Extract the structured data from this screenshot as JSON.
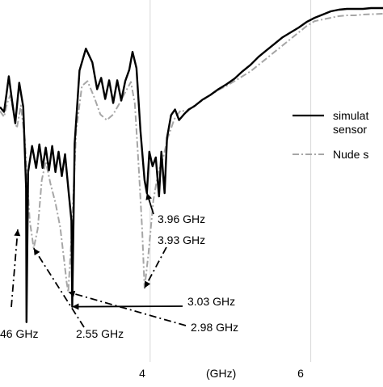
{
  "chart_data": {
    "type": "line",
    "xlabel": "(GHz)",
    "x_ticks": [
      {
        "value": 4,
        "label": "4"
      },
      {
        "value": 6,
        "label": "6"
      }
    ],
    "xlim": [
      2.13,
      6.9
    ],
    "ylim": [
      -46,
      0
    ],
    "grid": true,
    "legend_position": "right",
    "series": [
      {
        "name": "simulated sensor",
        "color": "#000000",
        "dash": "solid",
        "points": [
          [
            2.13,
            -12.0
          ],
          [
            2.18,
            -12.6
          ],
          [
            2.21,
            -10.5
          ],
          [
            2.24,
            -8.2
          ],
          [
            2.28,
            -11.2
          ],
          [
            2.32,
            -14.0
          ],
          [
            2.37,
            -9.0
          ],
          [
            2.42,
            -12.0
          ],
          [
            2.455,
            -22.0
          ],
          [
            2.46,
            -38.5
          ],
          [
            2.48,
            -20.0
          ],
          [
            2.53,
            -16.8
          ],
          [
            2.58,
            -19.5
          ],
          [
            2.62,
            -16.6
          ],
          [
            2.66,
            -19.5
          ],
          [
            2.7,
            -17.0
          ],
          [
            2.74,
            -19.8
          ],
          [
            2.78,
            -16.8
          ],
          [
            2.82,
            -20.0
          ],
          [
            2.86,
            -17.5
          ],
          [
            2.9,
            -20.5
          ],
          [
            2.94,
            -17.8
          ],
          [
            2.98,
            -22.0
          ],
          [
            3.02,
            -26.0
          ],
          [
            3.03,
            -36.6
          ],
          [
            3.06,
            -16.5
          ],
          [
            3.12,
            -7.5
          ],
          [
            3.2,
            -4.8
          ],
          [
            3.28,
            -6.5
          ],
          [
            3.34,
            -9.8
          ],
          [
            3.39,
            -8.4
          ],
          [
            3.44,
            -11.0
          ],
          [
            3.49,
            -8.7
          ],
          [
            3.54,
            -11.5
          ],
          [
            3.59,
            -8.7
          ],
          [
            3.64,
            -11.2
          ],
          [
            3.69,
            -8.8
          ],
          [
            3.74,
            -7.4
          ],
          [
            3.78,
            -5.2
          ],
          [
            3.83,
            -7.2
          ],
          [
            3.88,
            -15.0
          ],
          [
            3.93,
            -21.0
          ],
          [
            3.96,
            -22.6
          ],
          [
            3.99,
            -17.5
          ],
          [
            4.03,
            -19.3
          ],
          [
            4.07,
            -18.2
          ],
          [
            4.11,
            -23.0
          ],
          [
            4.14,
            -17.5
          ],
          [
            4.18,
            -22.6
          ],
          [
            4.21,
            -15.8
          ],
          [
            4.26,
            -13.0
          ],
          [
            4.31,
            -12.3
          ],
          [
            4.36,
            -13.6
          ],
          [
            4.42,
            -12.9
          ],
          [
            4.48,
            -12.3
          ],
          [
            4.55,
            -11.9
          ],
          [
            4.65,
            -11.1
          ],
          [
            4.75,
            -10.5
          ],
          [
            4.85,
            -9.8
          ],
          [
            4.95,
            -9.2
          ],
          [
            5.05,
            -8.5
          ],
          [
            5.15,
            -7.6
          ],
          [
            5.25,
            -6.8
          ],
          [
            5.35,
            -5.8
          ],
          [
            5.45,
            -5.0
          ],
          [
            5.55,
            -4.2
          ],
          [
            5.65,
            -3.4
          ],
          [
            5.75,
            -2.8
          ],
          [
            5.85,
            -2.2
          ],
          [
            5.95,
            -1.5
          ],
          [
            6.05,
            -1.0
          ],
          [
            6.15,
            -0.6
          ],
          [
            6.25,
            -0.2
          ],
          [
            6.35,
            0.0
          ],
          [
            6.45,
            0.1
          ],
          [
            6.55,
            0.1
          ],
          [
            6.65,
            0.1
          ],
          [
            6.75,
            0.2
          ],
          [
            6.9,
            0.2
          ]
        ]
      },
      {
        "name": "Nude sensor",
        "color": "#a6a6a6",
        "dash": "dashdot",
        "points": [
          [
            2.13,
            -12.5
          ],
          [
            2.18,
            -13.2
          ],
          [
            2.22,
            -11.5
          ],
          [
            2.26,
            -10.5
          ],
          [
            2.3,
            -12.8
          ],
          [
            2.34,
            -14.6
          ],
          [
            2.39,
            -11.8
          ],
          [
            2.44,
            -16.0
          ],
          [
            2.5,
            -26.0
          ],
          [
            2.55,
            -29.4
          ],
          [
            2.6,
            -27.0
          ],
          [
            2.65,
            -21.0
          ],
          [
            2.7,
            -18.7
          ],
          [
            2.76,
            -21.5
          ],
          [
            2.82,
            -23.8
          ],
          [
            2.88,
            -26.8
          ],
          [
            2.93,
            -31.0
          ],
          [
            2.96,
            -33.6
          ],
          [
            2.98,
            -34.8
          ],
          [
            3.02,
            -28.0
          ],
          [
            3.08,
            -14.8
          ],
          [
            3.15,
            -9.4
          ],
          [
            3.22,
            -8.8
          ],
          [
            3.3,
            -10.7
          ],
          [
            3.38,
            -12.9
          ],
          [
            3.46,
            -13.6
          ],
          [
            3.54,
            -12.9
          ],
          [
            3.62,
            -11.5
          ],
          [
            3.7,
            -10.0
          ],
          [
            3.76,
            -8.9
          ],
          [
            3.81,
            -11.6
          ],
          [
            3.86,
            -19.8
          ],
          [
            3.9,
            -27.0
          ],
          [
            3.93,
            -34.3
          ],
          [
            3.98,
            -30.0
          ],
          [
            4.04,
            -23.5
          ],
          [
            4.1,
            -20.0
          ],
          [
            4.16,
            -18.3
          ],
          [
            4.22,
            -15.8
          ],
          [
            4.3,
            -13.5
          ],
          [
            4.38,
            -12.4
          ],
          [
            4.46,
            -12.6
          ],
          [
            4.55,
            -11.8
          ],
          [
            4.65,
            -11.2
          ],
          [
            4.75,
            -10.5
          ],
          [
            4.85,
            -9.9
          ],
          [
            4.95,
            -9.4
          ],
          [
            5.05,
            -8.8
          ],
          [
            5.15,
            -8.2
          ],
          [
            5.25,
            -7.6
          ],
          [
            5.35,
            -6.8
          ],
          [
            5.45,
            -6.0
          ],
          [
            5.55,
            -5.2
          ],
          [
            5.65,
            -4.4
          ],
          [
            5.75,
            -3.6
          ],
          [
            5.85,
            -2.8
          ],
          [
            5.95,
            -2.0
          ],
          [
            6.05,
            -1.4
          ],
          [
            6.15,
            -1.2
          ],
          [
            6.25,
            -1.0
          ],
          [
            6.35,
            -0.8
          ],
          [
            6.45,
            -0.7
          ],
          [
            6.55,
            -0.7
          ],
          [
            6.65,
            -0.6
          ],
          [
            6.9,
            -0.5
          ]
        ]
      }
    ],
    "annotations": [
      {
        "text": "3.96 GHz",
        "x": 3.96,
        "y": -22.6
      },
      {
        "text": "3.93 GHz",
        "x": 3.93,
        "y": -34.3
      },
      {
        "text": "3.03 GHz",
        "x": 3.03,
        "y": -36.6
      },
      {
        "text": "2.98 GHz",
        "x": 2.98,
        "y": -34.8
      },
      {
        "text": "2.55 GHz",
        "x": 2.55,
        "y": -29.4
      },
      {
        "text": "46 GHz",
        "x": 2.46,
        "y": -38.5
      }
    ]
  },
  "legend": {
    "entries": [
      {
        "line1": "simulat",
        "line2": "sensor",
        "color": "#000000",
        "dash": "solid"
      },
      {
        "line1": "Nude s",
        "line2": "",
        "color": "#a6a6a6",
        "dash": "dashdot"
      }
    ]
  }
}
